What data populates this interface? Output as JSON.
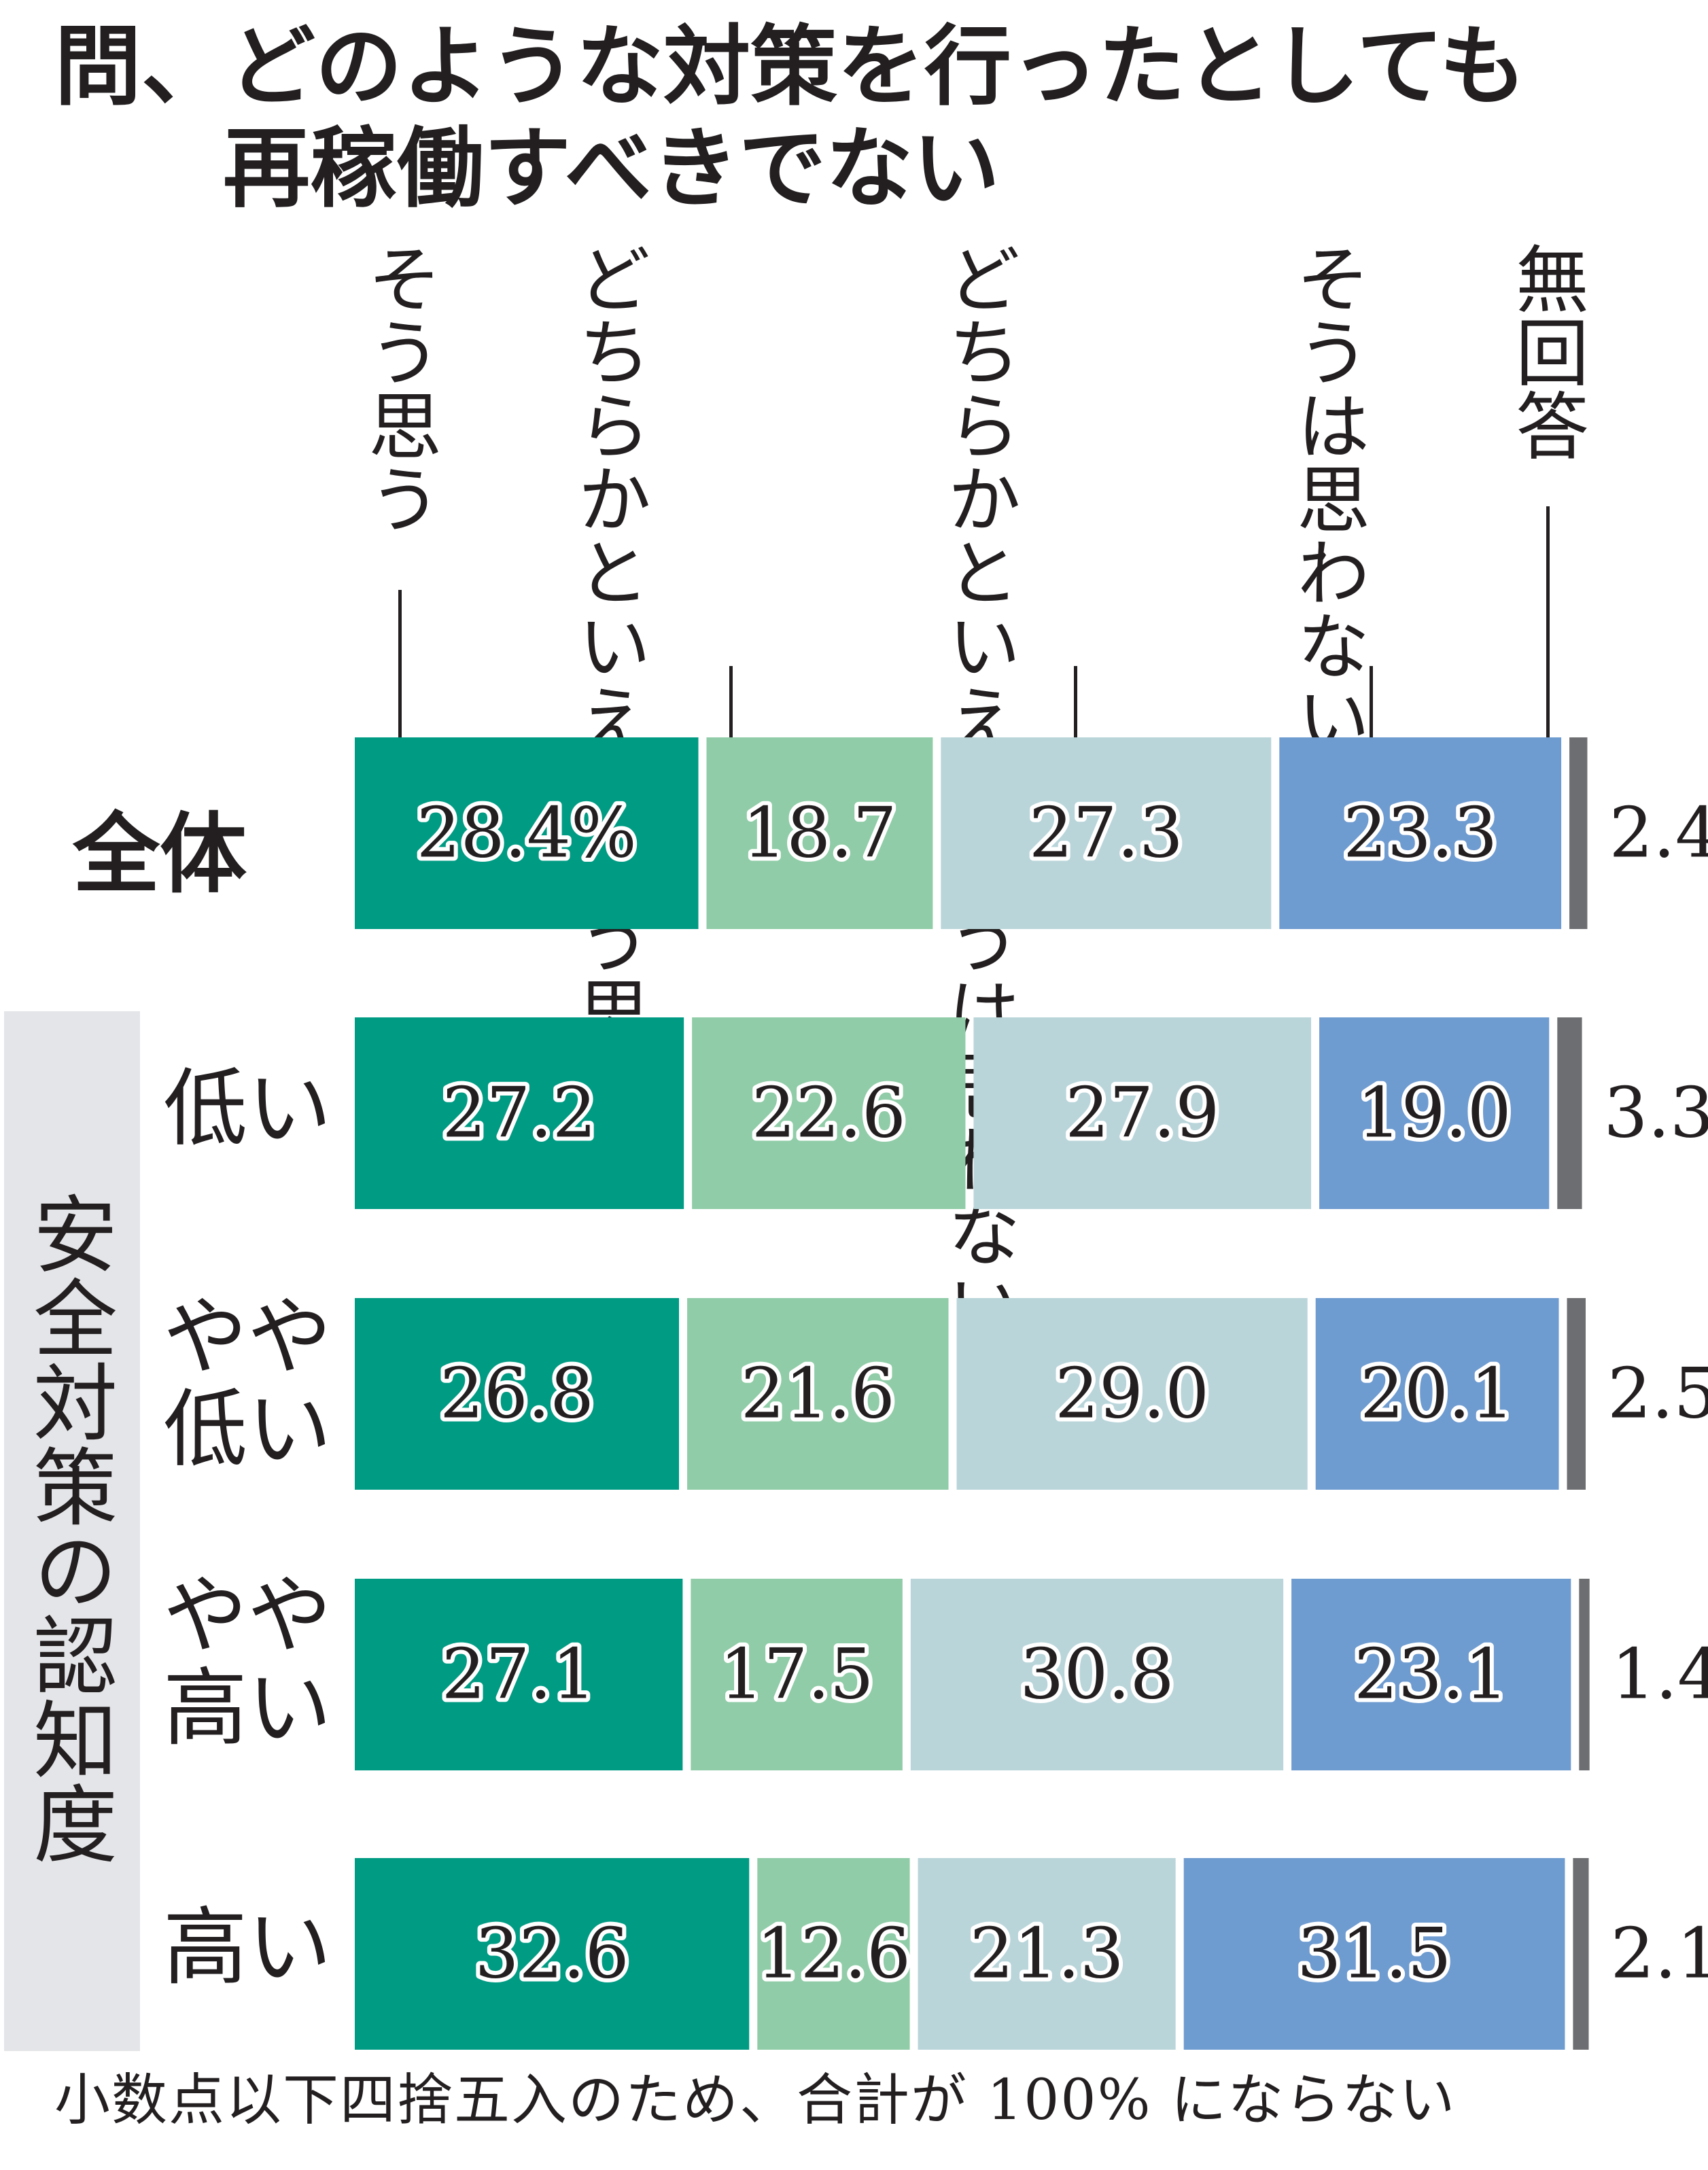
{
  "title": {
    "line1": "問、どのような対策を行ったとしても",
    "line2": "再稼働すべきでない"
  },
  "column_headers": [
    "そう思う",
    "どちらかといえばそう思う",
    "どちらかといえばそうは思わない",
    "そうは思わない",
    "無回答"
  ],
  "group_label": "安全対策の認知度",
  "row_labels": [
    "全体",
    "低い",
    "やや低い",
    "やや高い",
    "高い"
  ],
  "footnote": "小数点以下四捨五入のため、合計が 100% にならない",
  "chart_data": {
    "type": "bar",
    "orientation": "horizontal",
    "stacked": true,
    "categories": [
      "全体",
      "低い",
      "やや低い",
      "やや高い",
      "高い"
    ],
    "category_group": "安全対策の認知度",
    "unit": "%",
    "series": [
      {
        "name": "そう思う",
        "color": "#009b83",
        "values": [
          28.4,
          27.2,
          26.8,
          27.1,
          32.6
        ],
        "labels": [
          "28.4%",
          "27.2",
          "26.8",
          "27.1",
          "32.6"
        ]
      },
      {
        "name": "どちらかといえばそう思う",
        "color": "#8fcca7",
        "values": [
          18.7,
          22.6,
          21.6,
          17.5,
          12.6
        ],
        "labels": [
          "18.7",
          "22.6",
          "21.6",
          "17.5",
          "12.6"
        ]
      },
      {
        "name": "どちらかといえばそうは思わない",
        "color": "#b9d5da",
        "values": [
          27.3,
          27.9,
          29.0,
          30.8,
          21.3
        ],
        "labels": [
          "27.3",
          "27.9",
          "29.0",
          "30.8",
          "21.3"
        ]
      },
      {
        "name": "そうは思わない",
        "color": "#6e9bd0",
        "values": [
          23.3,
          19.0,
          20.1,
          23.1,
          31.5
        ],
        "labels": [
          "23.3",
          "19.0",
          "20.1",
          "23.1",
          "31.5"
        ]
      },
      {
        "name": "無回答",
        "color": "#6d6e71",
        "values": [
          2.4,
          3.3,
          2.5,
          1.4,
          2.1
        ],
        "labels": [
          "2.4",
          "3.3",
          "2.5",
          "1.4",
          "2.1"
        ]
      }
    ]
  }
}
